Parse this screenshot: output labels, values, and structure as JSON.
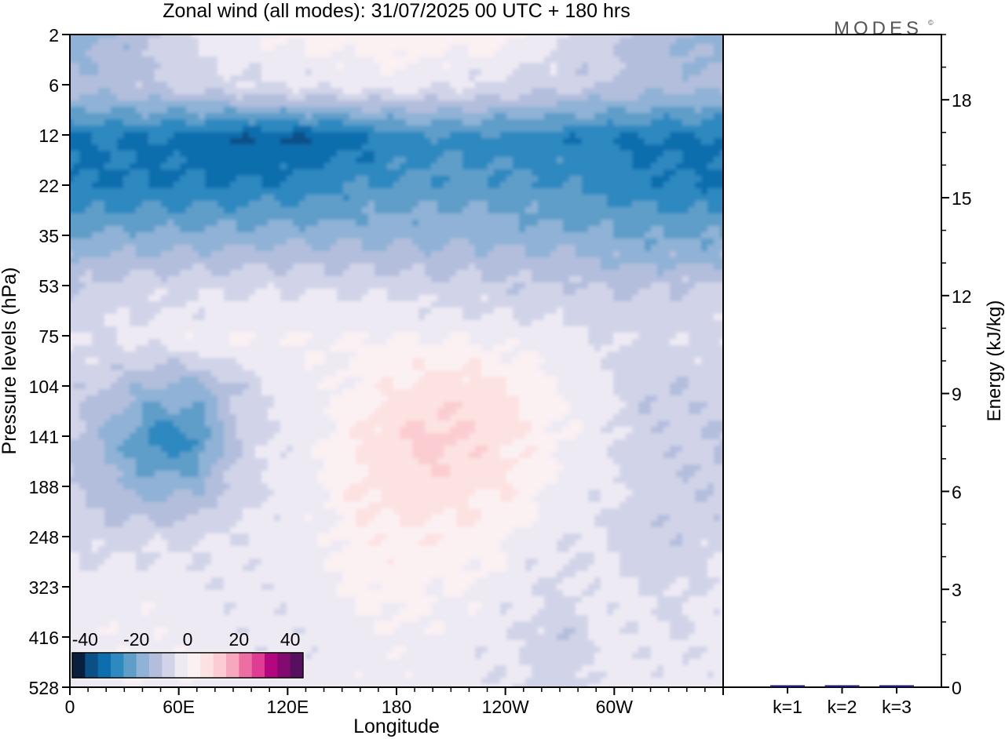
{
  "chart_data": [
    {
      "type": "heatmap",
      "title": "Zonal wind (all modes):  31/07/2025  00 UTC  + 180 hrs",
      "xlabel": "Longitude",
      "ylabel": "Pressure levels (hPa)",
      "x_ticks": [
        "0",
        "60E",
        "120E",
        "180",
        "120W",
        "60W"
      ],
      "x_tick_values": [
        0,
        60,
        120,
        180,
        240,
        300
      ],
      "xlim": [
        0,
        360
      ],
      "y_levels": [
        2,
        6,
        12,
        22,
        35,
        53,
        75,
        104,
        141,
        188,
        248,
        323,
        416,
        528
      ],
      "y_tick_labels": [
        "2",
        "6",
        "12",
        "22",
        "35",
        "53",
        "75",
        "104",
        "141",
        "188",
        "248",
        "323",
        "416",
        "528"
      ],
      "y_scale": "categorical-levels, top 2 hPa to bottom 528 hPa",
      "colorbar": {
        "tick_labels": [
          "-40",
          "-20",
          "0",
          "20",
          "40"
        ],
        "range": [
          -45,
          45
        ],
        "step": 5,
        "colors": [
          "#08203e",
          "#0a4f86",
          "#0d6eae",
          "#2d89c0",
          "#5f9ec9",
          "#8fb2d6",
          "#b3bedd",
          "#d1d4e8",
          "#eeeaf4",
          "#fbf1f3",
          "#fde2e2",
          "#fbcdd2",
          "#f7a8bd",
          "#ec6fa4",
          "#de3d93",
          "#b4077f",
          "#830a71",
          "#56105f"
        ],
        "location": "bottom-left"
      },
      "field_rows": [
        {
          "level": 2,
          "values": [
            -18,
            -15,
            -10,
            -5,
            -2,
            0,
            2,
            3,
            4,
            3,
            2,
            0,
            -5,
            -8,
            -12,
            -15
          ]
        },
        {
          "level": 6,
          "values": [
            -13,
            -12,
            -10,
            -8,
            -6,
            -5,
            -5,
            -4,
            -4,
            -5,
            -6,
            -7,
            -9,
            -10,
            -12,
            -14
          ]
        },
        {
          "level": 12,
          "values": [
            -31,
            -30,
            -31,
            -33,
            -35,
            -36,
            -35,
            -32,
            -28,
            -27,
            -27,
            -28,
            -29,
            -30,
            -31,
            -31
          ]
        },
        {
          "level": 22,
          "values": [
            -30,
            -30,
            -30,
            -29,
            -29,
            -28,
            -27,
            -25,
            -24,
            -23,
            -23,
            -24,
            -25,
            -26,
            -28,
            -30
          ]
        },
        {
          "level": 35,
          "values": [
            -20,
            -19,
            -18,
            -18,
            -17,
            -16,
            -16,
            -16,
            -16,
            -16,
            -16,
            -17,
            -18,
            -19,
            -20,
            -20
          ]
        },
        {
          "level": 53,
          "values": [
            -9,
            -8,
            -7,
            -6,
            -5,
            -5,
            -5,
            -6,
            -7,
            -8,
            -8,
            -9,
            -9,
            -10,
            -10,
            -9
          ]
        },
        {
          "level": 75,
          "values": [
            -5,
            -4,
            -3,
            -1,
            0,
            0,
            0,
            0,
            1,
            0,
            -1,
            -2,
            -3,
            -5,
            -6,
            -6
          ]
        },
        {
          "level": 104,
          "values": [
            -8,
            -12,
            -16,
            -18,
            -10,
            -4,
            -2,
            2,
            6,
            8,
            8,
            4,
            -1,
            -4,
            -10,
            -9
          ]
        },
        {
          "level": 141,
          "values": [
            -10,
            -18,
            -28,
            -26,
            -10,
            -4,
            -1,
            5,
            10,
            12,
            9,
            5,
            0,
            -3,
            -8,
            -9
          ]
        },
        {
          "level": 188,
          "values": [
            -10,
            -14,
            -18,
            -16,
            -8,
            -3,
            -1,
            6,
            8,
            8,
            6,
            4,
            -2,
            -4,
            -7,
            -9
          ]
        },
        {
          "level": 248,
          "values": [
            -6,
            -7,
            -6,
            -5,
            -4,
            -3,
            -2,
            3,
            4,
            4,
            3,
            -2,
            -4,
            -5,
            -10,
            -8
          ]
        },
        {
          "level": 323,
          "values": [
            -3,
            -2,
            -2,
            -3,
            -4,
            -3,
            -2,
            1,
            2,
            0,
            -1,
            -4,
            -6,
            -3,
            -5,
            -6
          ]
        },
        {
          "level": 416,
          "values": [
            -2,
            -1,
            -1,
            -2,
            -3,
            -4,
            -3,
            -2,
            -1,
            -2,
            -3,
            -5,
            -10,
            -3,
            -4,
            -5
          ]
        },
        {
          "level": 528,
          "values": [
            -2,
            -1,
            -1,
            -1,
            -2,
            -3,
            -3,
            -2,
            -2,
            -3,
            -4,
            -5,
            -8,
            -3,
            -3,
            -4
          ]
        }
      ]
    },
    {
      "type": "bar",
      "categories": [
        "k=1",
        "k=2",
        "k=3"
      ],
      "values": [
        0.05,
        0.02,
        0.02
      ],
      "ylabel": "Energy (kJ/kg)",
      "ylim": [
        0,
        20
      ],
      "y_ticks": [
        0,
        3,
        6,
        9,
        12,
        15,
        18
      ],
      "y_tick_labels": [
        "0",
        "3",
        "6",
        "9",
        "12",
        "15",
        "18"
      ],
      "bar_color": "#1a1a6e"
    }
  ],
  "logo": "MODES",
  "logo_mark": "©"
}
